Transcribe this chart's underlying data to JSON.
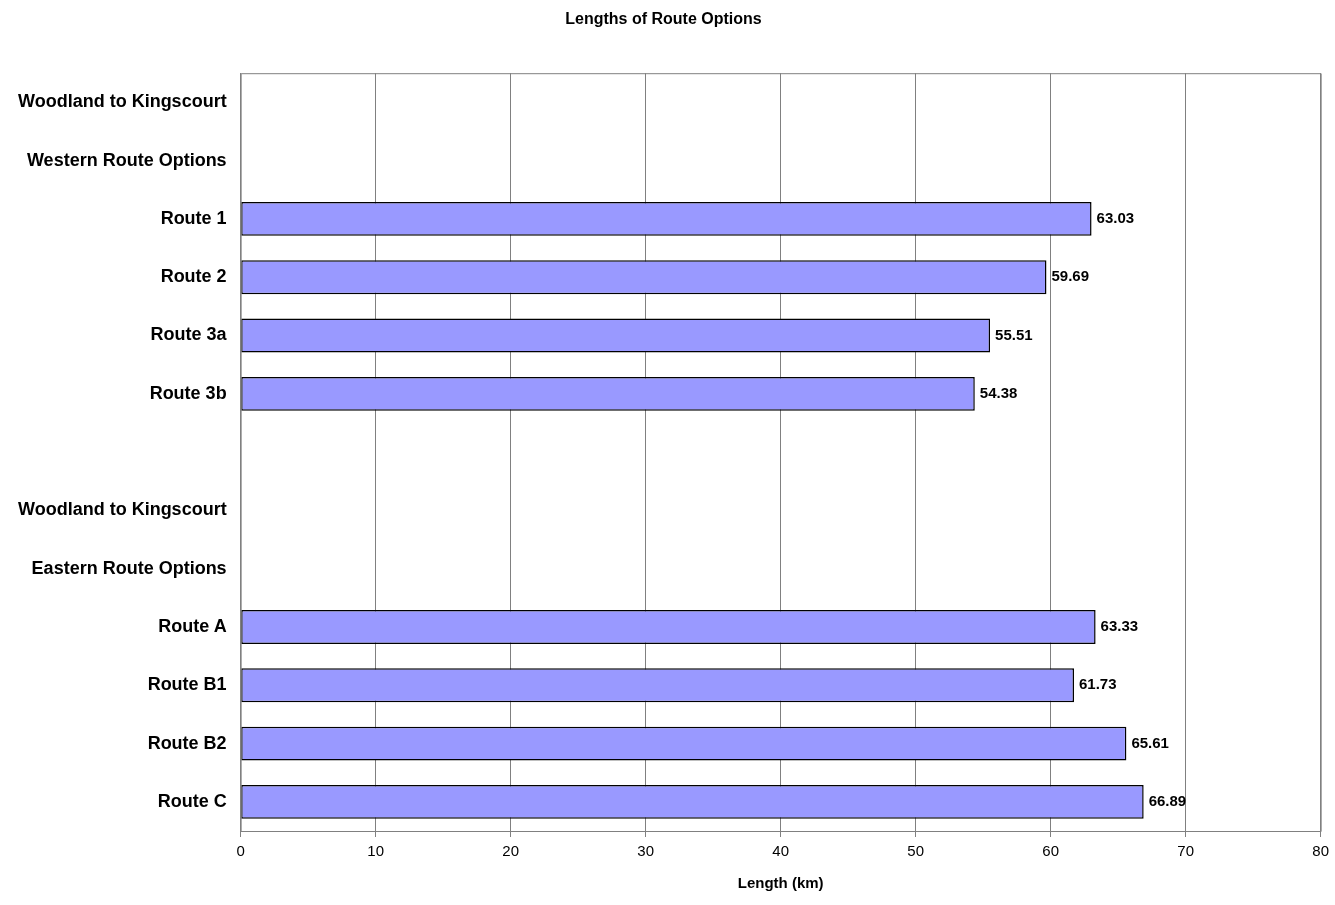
{
  "chart_data": {
    "type": "bar",
    "orientation": "horizontal",
    "title": "Lengths of Route Options",
    "xlabel": "Length (km)",
    "categories": [
      "Woodland to Kingscourt",
      "Western Route Options",
      "Route 1",
      "Route 2",
      "Route 3a",
      "Route 3b",
      null,
      "Woodland to Kingscourt",
      "Eastern Route Options",
      "Route A",
      "Route B1",
      "Route B2",
      "Route C"
    ],
    "values": [
      null,
      null,
      63.03,
      59.69,
      55.51,
      54.38,
      null,
      null,
      null,
      63.33,
      61.73,
      65.61,
      66.89
    ],
    "color": "#9999ff",
    "data_labels": true,
    "xlim": [
      0,
      80
    ],
    "xticks": [
      0,
      10,
      20,
      30,
      40,
      50,
      60,
      70,
      80
    ],
    "grid": "x",
    "legend": false
  }
}
